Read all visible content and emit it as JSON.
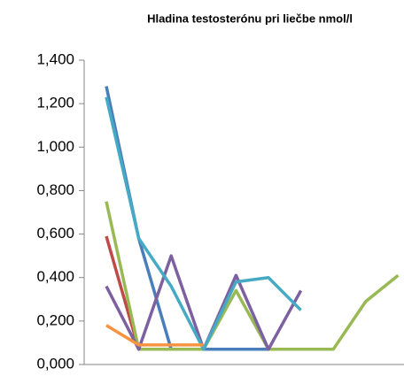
{
  "chart_data": {
    "type": "line",
    "title": "Hladina testosterónu  pri liečbe  nmol/l",
    "categories": [
      null,
      null,
      null,
      null,
      null,
      null,
      null,
      null,
      null,
      null
    ],
    "series": [
      {
        "name": null,
        "color": "#4a7ebb",
        "values": [
          1.28,
          0.58,
          0.07,
          0.07,
          0.07,
          0.07,
          null,
          null,
          null,
          null
        ]
      },
      {
        "name": null,
        "color": "#be4b48",
        "values": [
          0.59,
          0.07,
          null,
          null,
          null,
          null,
          null,
          null,
          null,
          null
        ]
      },
      {
        "name": null,
        "color": "#98b954",
        "values": [
          0.75,
          0.07,
          0.07,
          0.07,
          0.34,
          0.07,
          0.07,
          0.07,
          0.29,
          0.41
        ]
      },
      {
        "name": null,
        "color": "#7d60a0",
        "values": [
          0.36,
          0.07,
          0.5,
          0.07,
          0.41,
          0.07,
          0.34,
          null,
          null,
          null
        ]
      },
      {
        "name": null,
        "color": "#46aac5",
        "values": [
          1.23,
          0.58,
          0.36,
          0.07,
          0.38,
          0.4,
          0.25,
          null,
          null,
          null
        ]
      },
      {
        "name": null,
        "color": "#f69240",
        "values": [
          0.18,
          0.09,
          0.09,
          0.09,
          null,
          null,
          null,
          null,
          null,
          null
        ]
      }
    ],
    "ylim": [
      0,
      1.4
    ],
    "yticks": [
      {
        "value": 0,
        "label": "0,000"
      },
      {
        "value": 0.2,
        "label": "0,200"
      },
      {
        "value": 0.4,
        "label": "0,400"
      },
      {
        "value": 0.6,
        "label": "0,600"
      },
      {
        "value": 0.8,
        "label": "0,800"
      },
      {
        "value": 1.0,
        "label": "1,000"
      },
      {
        "value": 1.2,
        "label": "1,200"
      },
      {
        "value": 1.4,
        "label": "1,400"
      }
    ],
    "grid": false
  }
}
